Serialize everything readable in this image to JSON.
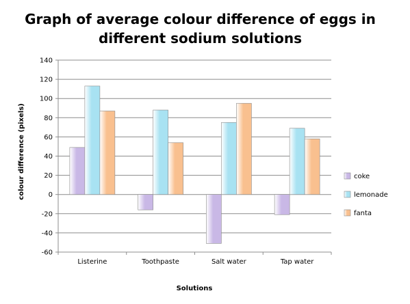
{
  "chart_data": {
    "type": "bar",
    "title_lines": [
      "Graph of average colour difference of eggs in",
      "different sodium solutions"
    ],
    "xlabel": "Solutions",
    "ylabel": "colour difference (pixels)",
    "categories": [
      "Listerine",
      "Toothpaste",
      "Salt water",
      "Tap water"
    ],
    "series": [
      {
        "name": "coke",
        "values": [
          49,
          -16,
          -51,
          -21
        ],
        "color": "#c9b8e6"
      },
      {
        "name": "lemonade",
        "values": [
          113,
          88,
          75,
          69
        ],
        "color": "#a8e2f2"
      },
      {
        "name": "fanta",
        "values": [
          87,
          54,
          95,
          58
        ],
        "color": "#f9c08f"
      }
    ],
    "ylim": [
      -60,
      140
    ],
    "yticks": [
      "140",
      "120",
      "100",
      "80",
      "60",
      "40",
      "20",
      "0",
      "-20",
      "-40",
      "-60"
    ],
    "grid": true,
    "legend_position": "right"
  }
}
